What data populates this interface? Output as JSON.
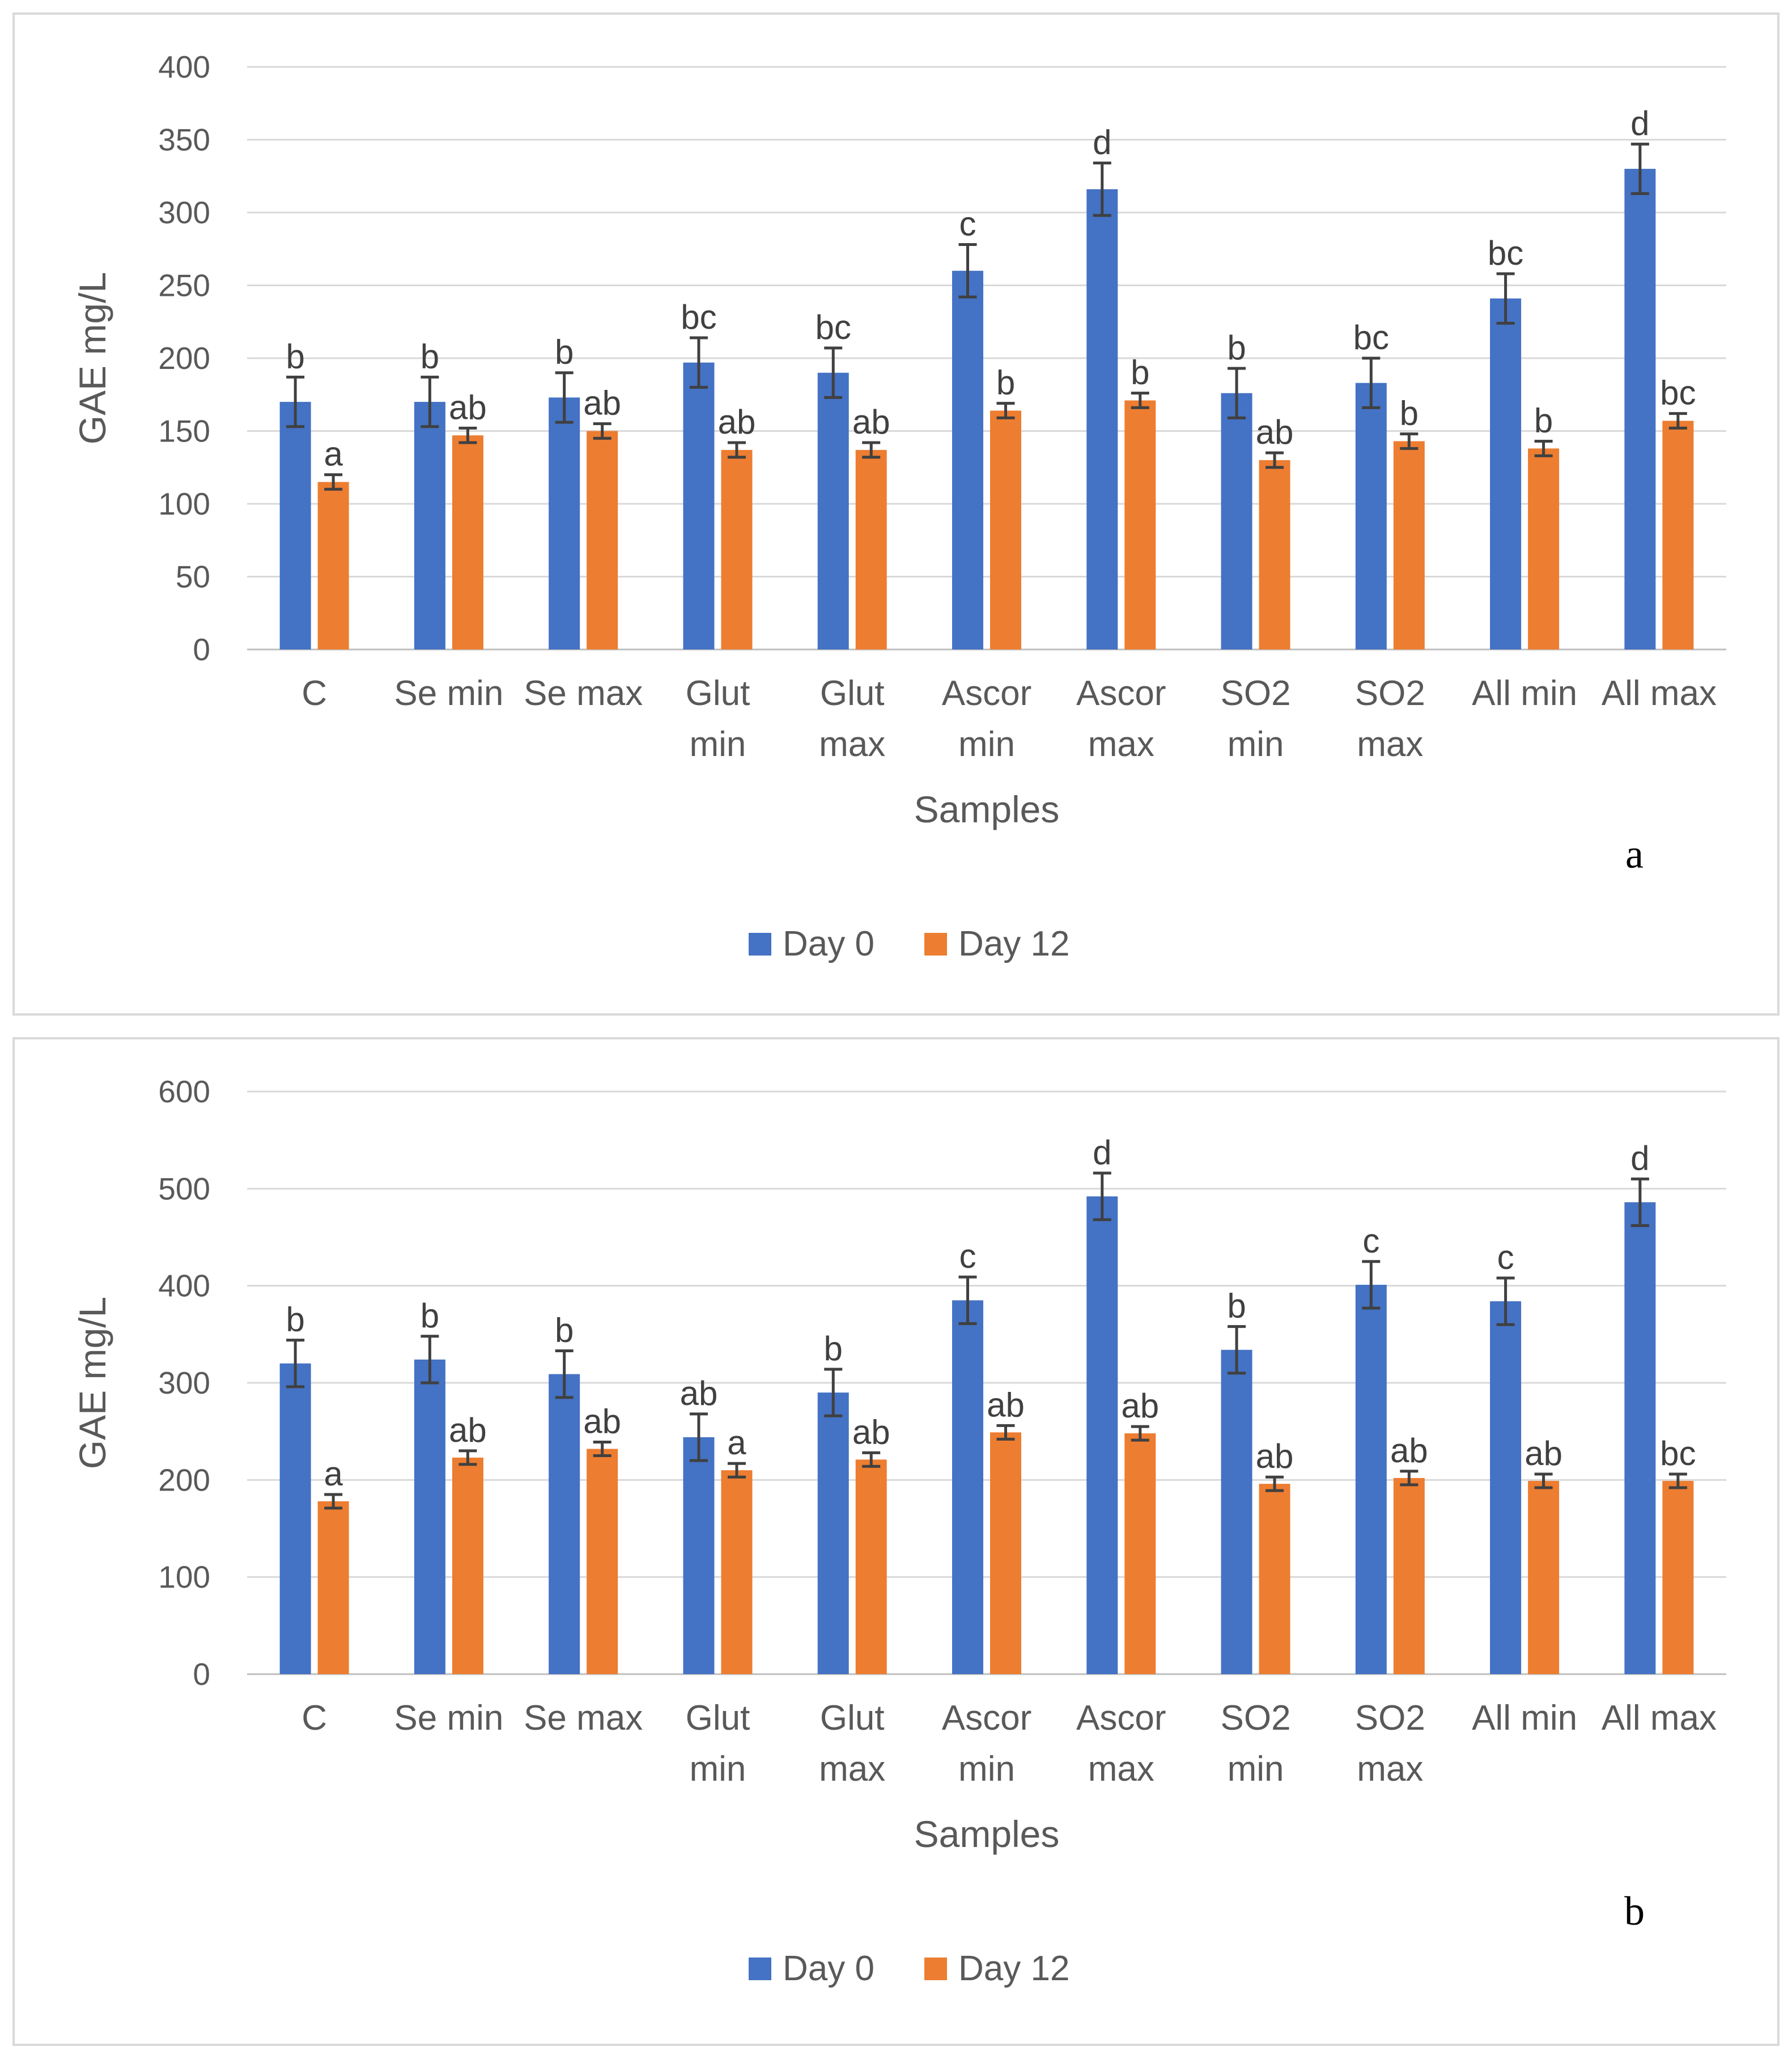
{
  "legend": {
    "day0": "Day 0",
    "day12": "Day 12"
  },
  "colors": {
    "day0": "#4472C4",
    "day12": "#ED7D31",
    "grid": "#d9d9d9",
    "text": "#595959",
    "error": "#404040"
  },
  "chart_data": [
    {
      "type": "bar",
      "panel_label": "a",
      "xlabel": "Samples",
      "ylabel": "GAE mg/L",
      "ylim": [
        0,
        400
      ],
      "yticks": [
        0,
        50,
        100,
        150,
        200,
        250,
        300,
        350,
        400
      ],
      "categories": [
        [
          "C"
        ],
        [
          "Se min"
        ],
        [
          "Se max"
        ],
        [
          "Glut",
          "min"
        ],
        [
          "Glut",
          "max"
        ],
        [
          "Ascor",
          "min"
        ],
        [
          "Ascor",
          "max"
        ],
        [
          "SO2",
          "min"
        ],
        [
          "SO2",
          "max"
        ],
        [
          "All min"
        ],
        [
          "All max"
        ]
      ],
      "series": [
        {
          "name": "Day 0",
          "values": [
            170,
            170,
            173,
            197,
            190,
            260,
            316,
            176,
            183,
            241,
            330
          ],
          "errors": [
            17,
            17,
            17,
            17,
            17,
            18,
            18,
            17,
            17,
            17,
            17
          ],
          "labels": [
            "b",
            "b",
            "b",
            "bc",
            "bc",
            "c",
            "d",
            "b",
            "bc",
            "bc",
            "d"
          ]
        },
        {
          "name": "Day 12",
          "values": [
            115,
            147,
            150,
            137,
            137,
            164,
            171,
            130,
            143,
            138,
            157
          ],
          "errors": [
            5,
            5,
            5,
            5,
            5,
            5,
            5,
            5,
            5,
            5,
            5
          ],
          "labels": [
            "a",
            "ab",
            "ab",
            "ab",
            "ab",
            "b",
            "b",
            "ab",
            "b",
            "b",
            "bc"
          ]
        }
      ]
    },
    {
      "type": "bar",
      "panel_label": "b",
      "xlabel": "Samples",
      "ylabel": "GAE mg/L",
      "ylim": [
        0,
        600
      ],
      "yticks": [
        0,
        100,
        200,
        300,
        400,
        500,
        600
      ],
      "categories": [
        [
          "C"
        ],
        [
          "Se min"
        ],
        [
          "Se max"
        ],
        [
          "Glut",
          "min"
        ],
        [
          "Glut",
          "max"
        ],
        [
          "Ascor",
          "min"
        ],
        [
          "Ascor",
          "max"
        ],
        [
          "SO2",
          "min"
        ],
        [
          "SO2",
          "max"
        ],
        [
          "All min"
        ],
        [
          "All max"
        ]
      ],
      "series": [
        {
          "name": "Day 0",
          "values": [
            320,
            324,
            309,
            244,
            290,
            385,
            492,
            334,
            401,
            384,
            486
          ],
          "errors": [
            24,
            24,
            24,
            24,
            24,
            24,
            24,
            24,
            24,
            24,
            24
          ],
          "labels": [
            "b",
            "b",
            "b",
            "ab",
            "b",
            "c",
            "d",
            "b",
            "c",
            "c",
            "d"
          ]
        },
        {
          "name": "Day 12",
          "values": [
            178,
            223,
            232,
            210,
            221,
            249,
            248,
            196,
            202,
            199,
            199
          ],
          "errors": [
            7,
            7,
            7,
            7,
            7,
            7,
            7,
            7,
            7,
            7,
            7
          ],
          "labels": [
            "a",
            "ab",
            "ab",
            "a",
            "ab",
            "ab",
            "ab",
            "ab",
            "ab",
            "ab",
            "bc"
          ]
        }
      ]
    }
  ]
}
